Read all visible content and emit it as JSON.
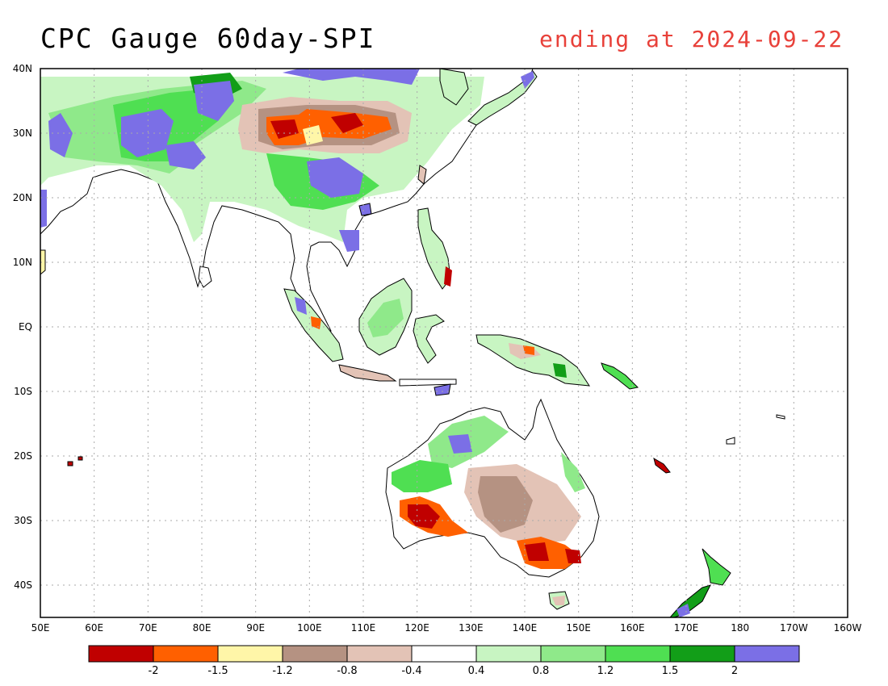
{
  "header": {
    "title": "CPC Gauge 60day-SPI",
    "subtitle": "ending at 2024-09-22"
  },
  "axes": {
    "lon_labels": [
      "50E",
      "60E",
      "70E",
      "80E",
      "90E",
      "100E",
      "110E",
      "120E",
      "130E",
      "140E",
      "150E",
      "160E",
      "170E",
      "180",
      "170W",
      "160W"
    ],
    "lat_labels": [
      "40N",
      "30N",
      "20N",
      "10N",
      "EQ",
      "10S",
      "20S",
      "30S",
      "40S"
    ]
  },
  "colorbar": {
    "colors": [
      "#c00000",
      "#ff6000",
      "#fff6a8",
      "#b59282",
      "#e3c3b6",
      "#ffffff",
      "#c8f5c2",
      "#8fe98a",
      "#4fdf52",
      "#129e18",
      "#7b6fe6"
    ],
    "labels": [
      "-2",
      "-1.5",
      "-1.2",
      "-0.8",
      "-0.4",
      "0.4",
      "0.8",
      "1.2",
      "1.5",
      "2"
    ]
  },
  "colors": {
    "subtitle": "#e8413a",
    "grid": "#aaaaaa"
  }
}
